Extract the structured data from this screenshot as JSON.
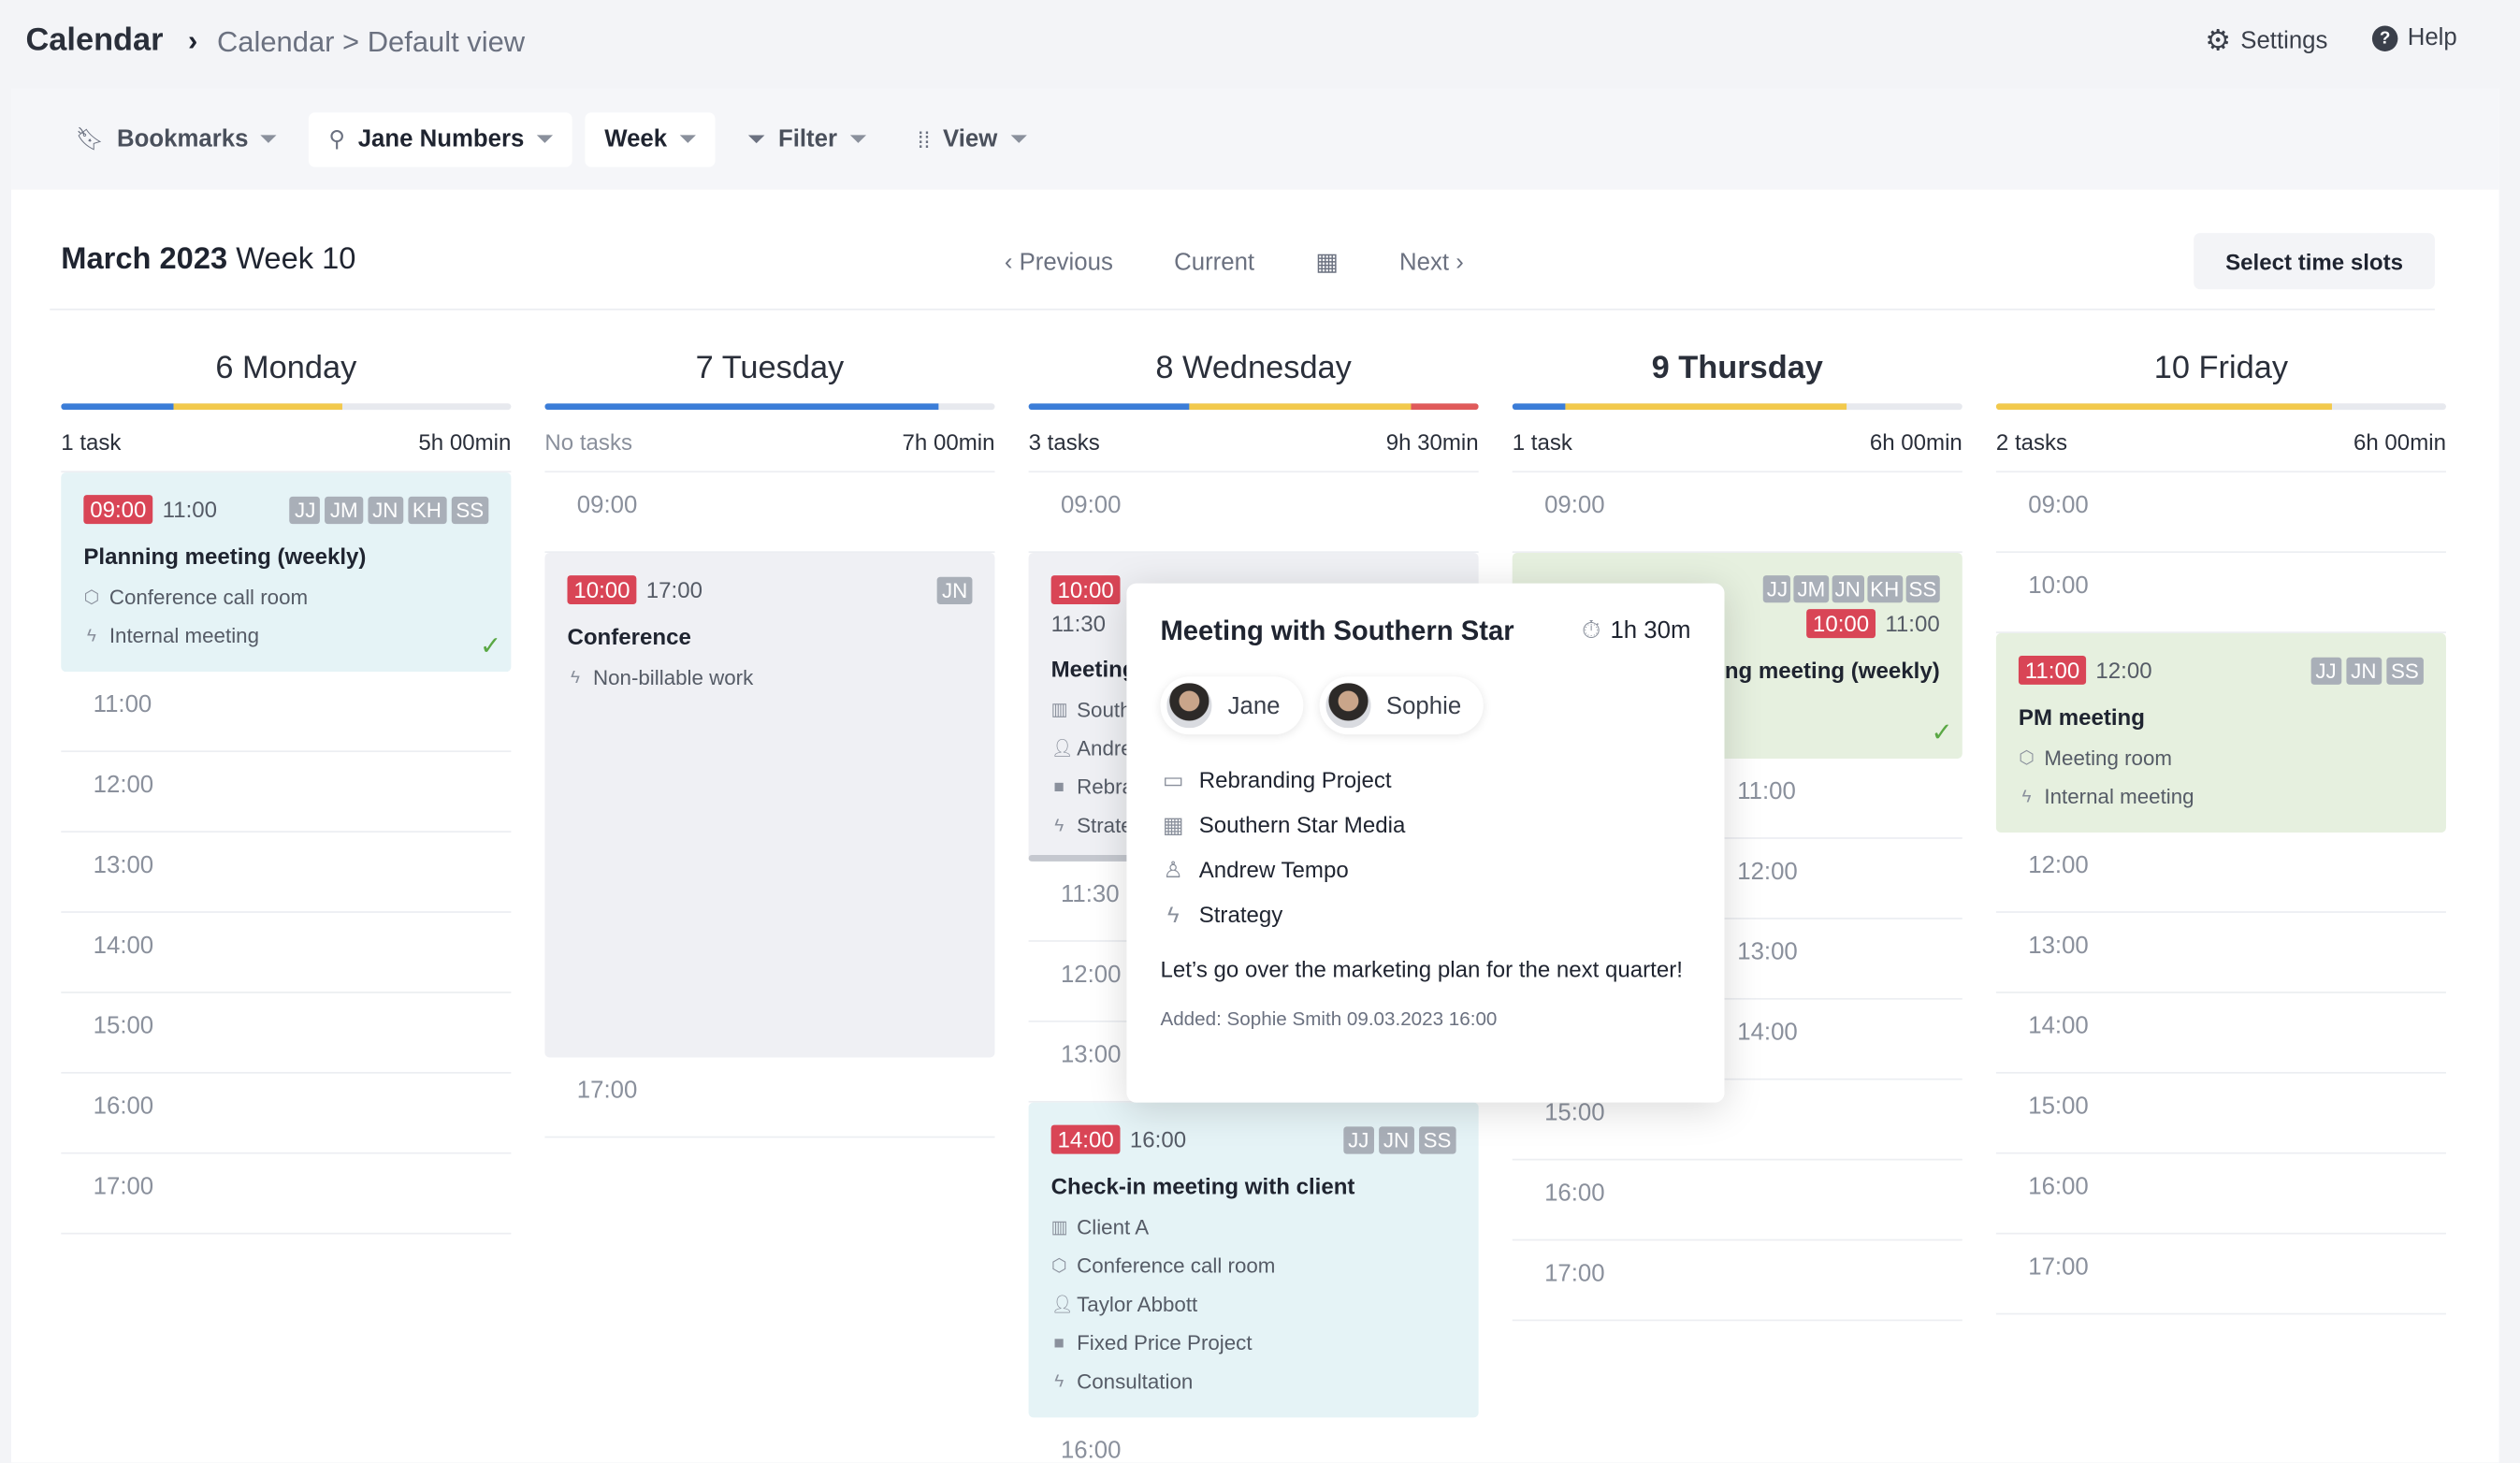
{
  "header": {
    "app_title": "Calendar",
    "breadcrumb_sep": "›",
    "breadcrumb": "Calendar > Default view",
    "settings": "Settings",
    "help": "Help"
  },
  "toolbar": {
    "bookmarks": "Bookmarks",
    "user": "Jane Numbers",
    "range": "Week",
    "filter": "Filter",
    "view": "View"
  },
  "week": {
    "month": "March 2023",
    "week": "Week 10",
    "previous": "Previous",
    "current": "Current",
    "next": "Next",
    "select_slots": "Select time slots"
  },
  "colors": {
    "blue": "#3b7dd8",
    "yellow": "#f2c94c",
    "red": "#e05a5a",
    "accent": "#d94556"
  },
  "days": [
    {
      "num": "6",
      "name": "Monday",
      "today": false,
      "tasks": "1 task",
      "hours": "5h 00min",
      "load": [
        [
          "blue",
          0.25
        ],
        [
          "yellow",
          0.375
        ]
      ],
      "items": [
        {
          "type": "card",
          "color": "blue",
          "start": "09:00",
          "end": "11:00",
          "tags": [
            "JJ",
            "JM",
            "JN",
            "KH",
            "SS"
          ],
          "title": "Planning meeting (weekly)",
          "meta": [
            [
              "cube-icon",
              "Conference call room"
            ],
            [
              "bolt-icon",
              "Internal meeting"
            ]
          ],
          "done": true
        },
        {
          "type": "hour",
          "label": "11:00"
        },
        {
          "type": "hour",
          "label": "12:00"
        },
        {
          "type": "hour",
          "label": "13:00"
        },
        {
          "type": "hour",
          "label": "14:00"
        },
        {
          "type": "hour",
          "label": "15:00"
        },
        {
          "type": "hour",
          "label": "16:00"
        },
        {
          "type": "hour",
          "label": "17:00"
        }
      ]
    },
    {
      "num": "7",
      "name": "Tuesday",
      "today": false,
      "tasks": "No tasks",
      "hours": "7h 00min",
      "load": [
        [
          "blue",
          0.875
        ]
      ],
      "items": [
        {
          "type": "hour",
          "label": "09:00"
        },
        {
          "type": "card",
          "color": "gray",
          "start": "10:00",
          "end": "17:00",
          "tags": [
            "JN"
          ],
          "title": "Conference",
          "meta": [
            [
              "bolt-icon",
              "Non-billable work"
            ]
          ],
          "tall": true
        },
        {
          "type": "hour",
          "label": "17:00"
        }
      ]
    },
    {
      "num": "8",
      "name": "Wednesday",
      "today": false,
      "tasks": "3 tasks",
      "hours": "9h 30min",
      "load": [
        [
          "blue",
          0.357
        ],
        [
          "yellow",
          0.493
        ],
        [
          "red",
          0.15
        ]
      ],
      "items": [
        {
          "type": "hour",
          "label": "09:00"
        },
        {
          "type": "card",
          "color": "gray",
          "start": "10:00",
          "end": "11:30",
          "tags": [],
          "title": "Meeting with Southern Star",
          "meta": [
            [
              "building-icon",
              "Southern Star Media"
            ],
            [
              "person-icon",
              "Andrew Tempo"
            ],
            [
              "briefcase-icon",
              "Rebranding Project"
            ],
            [
              "bolt-icon",
              "Strategy"
            ]
          ],
          "scroll": true
        },
        {
          "type": "hour",
          "label": "11:30"
        },
        {
          "type": "hour",
          "label": "12:00"
        },
        {
          "type": "hour",
          "label": "13:00"
        },
        {
          "type": "card",
          "color": "blue",
          "start": "14:00",
          "end": "16:00",
          "tags": [
            "JJ",
            "JN",
            "SS"
          ],
          "title": "Check-in meeting with client",
          "meta": [
            [
              "building-icon",
              "Client A"
            ],
            [
              "cube-icon",
              "Conference call room"
            ],
            [
              "person-icon",
              "Taylor Abbott"
            ],
            [
              "briefcase-icon",
              "Fixed Price Project"
            ],
            [
              "bolt-icon",
              "Consultation"
            ]
          ]
        },
        {
          "type": "hour",
          "label": "16:00"
        }
      ]
    },
    {
      "num": "9",
      "name": "Thursday",
      "today": true,
      "tasks": "1 task",
      "hours": "6h 00min",
      "load": [
        [
          "blue",
          0.118
        ],
        [
          "yellow",
          0.625
        ]
      ],
      "items": [
        {
          "type": "hour",
          "label": "09:00"
        },
        {
          "type": "card",
          "color": "green",
          "start": "10:00",
          "end": "11:00",
          "tags": [
            "JJ",
            "JM",
            "JN",
            "KH",
            "SS"
          ],
          "title": "Planning meeting (weekly)",
          "meta": [],
          "done": true,
          "fixed": true
        },
        {
          "type": "hour",
          "label": "11:00"
        },
        {
          "type": "hour",
          "label": "12:00"
        },
        {
          "type": "hour",
          "label": "13:00"
        },
        {
          "type": "hour",
          "label": "14:00"
        },
        {
          "type": "hour",
          "label": "15:00"
        },
        {
          "type": "hour",
          "label": "16:00"
        },
        {
          "type": "hour",
          "label": "17:00"
        }
      ]
    },
    {
      "num": "10",
      "name": "Friday",
      "today": false,
      "tasks": "2 tasks",
      "hours": "6h 00min",
      "load": [
        [
          "yellow",
          0.746
        ]
      ],
      "items": [
        {
          "type": "hour",
          "label": "09:00"
        },
        {
          "type": "hour",
          "label": "10:00"
        },
        {
          "type": "card",
          "color": "green",
          "start": "11:00",
          "end": "12:00",
          "tags": [
            "JJ",
            "JN",
            "SS"
          ],
          "title": "PM meeting",
          "meta": [
            [
              "cube-icon",
              "Meeting room"
            ],
            [
              "bolt-icon",
              "Internal meeting"
            ]
          ]
        },
        {
          "type": "hour",
          "label": "12:00"
        },
        {
          "type": "hour",
          "label": "13:00"
        },
        {
          "type": "hour",
          "label": "14:00"
        },
        {
          "type": "hour",
          "label": "15:00"
        },
        {
          "type": "hour",
          "label": "16:00"
        },
        {
          "type": "hour",
          "label": "17:00"
        }
      ]
    }
  ],
  "popup": {
    "title": "Meeting with Southern Star",
    "duration": "1h 30m",
    "people": [
      "Jane",
      "Sophie"
    ],
    "project": "Rebranding Project",
    "client": "Southern Star Media",
    "contact": "Andrew Tempo",
    "type": "Strategy",
    "description": "Let’s go over the marketing plan for the next quarter!",
    "added": "Added: Sophie Smith 09.03.2023 16:00"
  }
}
